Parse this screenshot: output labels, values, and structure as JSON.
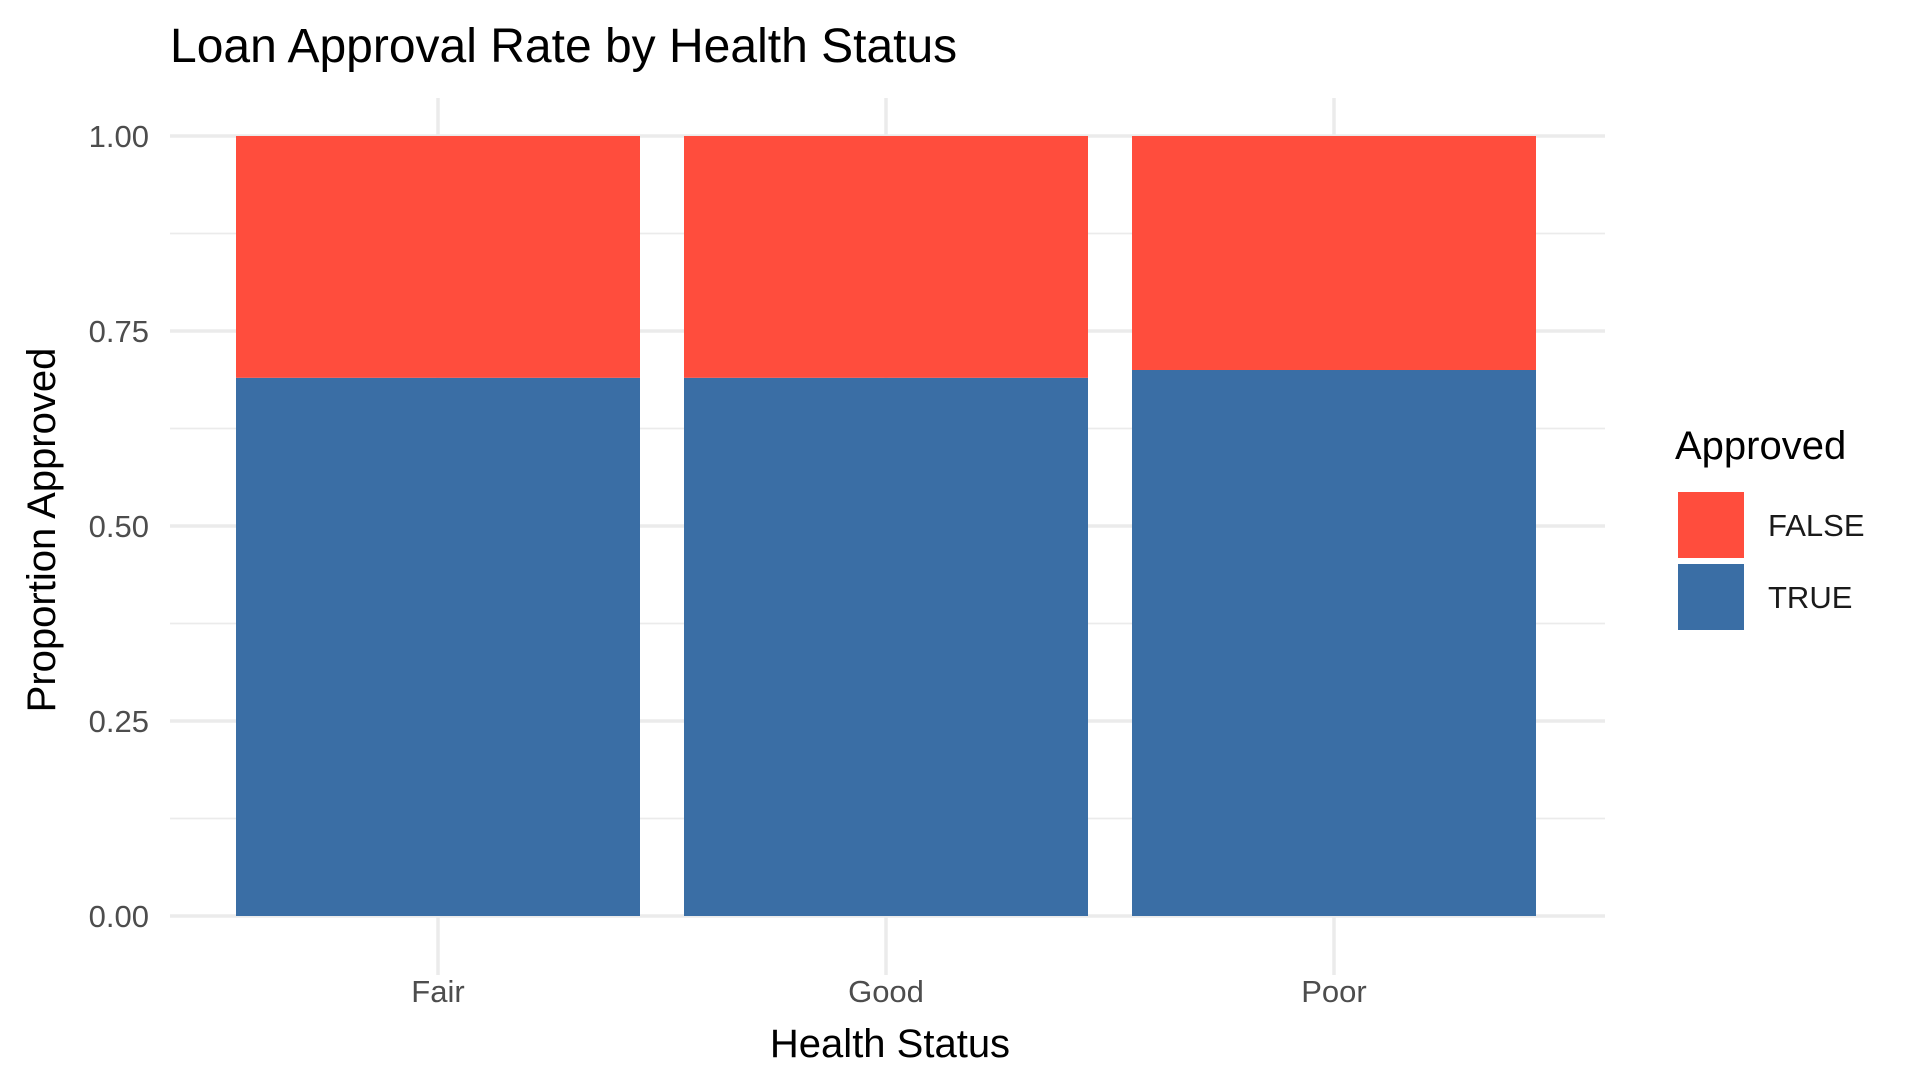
{
  "chart_data": {
    "type": "bar",
    "stacked": true,
    "title": "Loan Approval Rate by Health Status",
    "xlabel": "Health Status",
    "ylabel": "Proportion Approved",
    "categories": [
      "Fair",
      "Good",
      "Poor"
    ],
    "series": [
      {
        "name": "FALSE",
        "values": [
          0.31,
          0.31,
          0.3
        ],
        "color": "#FF4D3D"
      },
      {
        "name": "TRUE",
        "values": [
          0.69,
          0.69,
          0.7
        ],
        "color": "#3A6EA5"
      }
    ],
    "ylim": [
      0,
      1
    ],
    "yticks": [
      "0.00",
      "0.25",
      "0.50",
      "0.75",
      "1.00"
    ],
    "ytick_values": [
      0,
      0.25,
      0.5,
      0.75,
      1.0
    ],
    "grid": true,
    "legend": {
      "title": "Approved",
      "placement": "right"
    }
  }
}
